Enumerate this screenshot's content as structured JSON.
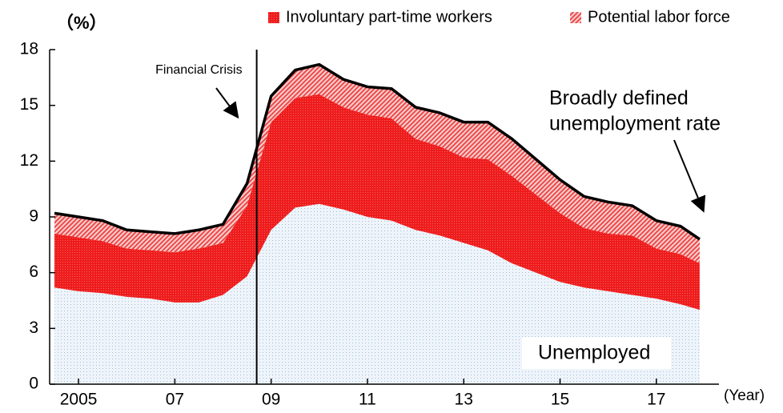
{
  "chart_data": {
    "type": "stacked_area",
    "y_label": "（%）",
    "x_label": "(Year)",
    "x": [
      2004.5,
      2005.0,
      2005.5,
      2006.0,
      2006.5,
      2007.0,
      2007.5,
      2008.0,
      2008.5,
      2009.0,
      2009.5,
      2010.0,
      2010.5,
      2011.0,
      2011.5,
      2012.0,
      2012.5,
      2013.0,
      2013.5,
      2014.0,
      2014.5,
      2015.0,
      2015.5,
      2016.0,
      2016.5,
      2017.0,
      2017.5,
      2017.9
    ],
    "series": [
      {
        "name": "Unemployed",
        "color": "#d6e6f2",
        "in_legend": false,
        "values": [
          5.2,
          5.0,
          4.9,
          4.7,
          4.6,
          4.4,
          4.4,
          4.8,
          5.8,
          8.3,
          9.5,
          9.7,
          9.4,
          9.0,
          8.8,
          8.3,
          8.0,
          7.6,
          7.2,
          6.5,
          6.0,
          5.5,
          5.2,
          5.0,
          4.8,
          4.6,
          4.3,
          4.0
        ]
      },
      {
        "name": "Involuntary part-time workers",
        "color": "#ee1c1c",
        "in_legend": true,
        "values": [
          2.9,
          2.9,
          2.8,
          2.6,
          2.6,
          2.7,
          2.9,
          2.8,
          3.8,
          5.8,
          5.9,
          5.9,
          5.5,
          5.5,
          5.5,
          4.9,
          4.8,
          4.6,
          4.9,
          4.7,
          4.2,
          3.7,
          3.2,
          3.1,
          3.2,
          2.7,
          2.7,
          2.5
        ]
      },
      {
        "name": "Potential labor force",
        "color": "#f07070",
        "in_legend": true,
        "values": [
          1.1,
          1.1,
          1.1,
          1.0,
          1.0,
          1.0,
          1.0,
          1.0,
          1.2,
          1.4,
          1.5,
          1.6,
          1.5,
          1.5,
          1.6,
          1.7,
          1.8,
          1.9,
          2.0,
          2.0,
          1.9,
          1.8,
          1.7,
          1.7,
          1.6,
          1.5,
          1.5,
          1.3
        ]
      }
    ],
    "total_line": {
      "color": "#000000",
      "values": [
        9.2,
        9.0,
        8.8,
        8.3,
        8.2,
        8.1,
        8.3,
        8.6,
        10.8,
        15.5,
        16.9,
        17.2,
        16.4,
        16.0,
        15.9,
        14.9,
        14.6,
        14.1,
        14.1,
        13.2,
        12.1,
        11.0,
        10.1,
        9.8,
        9.6,
        8.8,
        8.5,
        7.8
      ]
    },
    "total_annotation": [
      "Broadly defined",
      "unemployment rate"
    ],
    "vline": {
      "x": 2008.7,
      "label": "Financial Crisis"
    },
    "xlim": [
      2004.4,
      2018.3
    ],
    "ylim": [
      0,
      18
    ],
    "xticks": [
      {
        "value": 2005,
        "label": "2005"
      },
      {
        "value": 2007,
        "label": "07"
      },
      {
        "value": 2009,
        "label": "09"
      },
      {
        "value": 2011,
        "label": "11"
      },
      {
        "value": 2013,
        "label": "13"
      },
      {
        "value": 2015,
        "label": "15"
      },
      {
        "value": 2017,
        "label": "17"
      }
    ],
    "yticks": [
      0,
      3,
      6,
      9,
      12,
      15,
      18
    ],
    "legend": "top-right"
  }
}
